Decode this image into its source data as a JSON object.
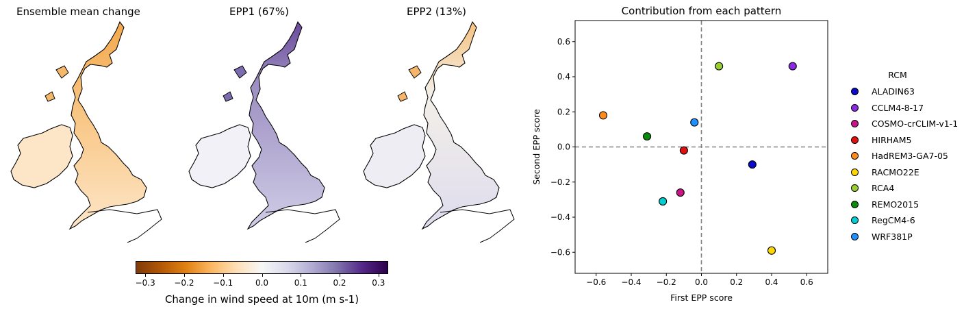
{
  "maps": {
    "titles": [
      "Ensemble mean change",
      "EPP1 (67%)",
      "EPP2 (13%)"
    ]
  },
  "colorbar": {
    "label": "Change in wind speed at 10m (m s-1)",
    "ticks": [
      "−0.3",
      "−0.2",
      "−0.1",
      "0.0",
      "0.1",
      "0.2",
      "0.3"
    ],
    "tick_values": [
      -0.3,
      -0.2,
      -0.1,
      0.0,
      0.1,
      0.2,
      0.3
    ],
    "range": [
      -0.325,
      0.325
    ],
    "colormap": "PuOr",
    "colors": [
      "#7f3b08",
      "#b35806",
      "#e08214",
      "#fdb863",
      "#fee0b6",
      "#f7f7f7",
      "#d8daeb",
      "#b2abd2",
      "#8073ac",
      "#542788",
      "#2d004b"
    ]
  },
  "legend": {
    "title": "RCM",
    "items": [
      {
        "label": "ALADIN63",
        "color": "#0a0ac8"
      },
      {
        "label": "CCLM4-8-17",
        "color": "#8a2be2"
      },
      {
        "label": "COSMO-crCLIM-v1-1",
        "color": "#c71585"
      },
      {
        "label": "HIRHAM5",
        "color": "#e01010"
      },
      {
        "label": "HadREM3-GA7-05",
        "color": "#ff8c1a"
      },
      {
        "label": "RACMO22E",
        "color": "#ffd700"
      },
      {
        "label": "RCA4",
        "color": "#9acd32"
      },
      {
        "label": "REMO2015",
        "color": "#0a8a0a"
      },
      {
        "label": "RegCM4-6",
        "color": "#00ced1"
      },
      {
        "label": "WRF381P",
        "color": "#1e90ff"
      }
    ]
  },
  "chart_data": {
    "type": "scatter",
    "title": "Contribution from each pattern",
    "xlabel": "First EPP score",
    "ylabel": "Second EPP score",
    "xlim": [
      -0.72,
      0.72
    ],
    "ylim": [
      -0.72,
      0.72
    ],
    "xticks": [
      -0.6,
      -0.4,
      -0.2,
      0.0,
      0.2,
      0.4,
      0.6
    ],
    "yticks": [
      -0.6,
      -0.4,
      -0.2,
      0.0,
      0.2,
      0.4,
      0.6
    ],
    "xtick_labels": [
      "−0.6",
      "−0.4",
      "−0.2",
      "0.0",
      "0.2",
      "0.4",
      "0.6"
    ],
    "ytick_labels": [
      "−0.6",
      "−0.4",
      "−0.2",
      "0.0",
      "0.2",
      "0.4",
      "0.6"
    ],
    "reference_lines": {
      "x": 0.0,
      "y": 0.0,
      "style": "dashed",
      "color": "#808080"
    },
    "grid": false,
    "legend_position": "right",
    "points": [
      {
        "name": "ALADIN63",
        "x": 0.29,
        "y": -0.1
      },
      {
        "name": "CCLM4-8-17",
        "x": 0.52,
        "y": 0.46
      },
      {
        "name": "COSMO-crCLIM-v1-1",
        "x": -0.12,
        "y": -0.26
      },
      {
        "name": "HIRHAM5",
        "x": -0.1,
        "y": -0.02
      },
      {
        "name": "HadREM3-GA7-05",
        "x": -0.56,
        "y": 0.18
      },
      {
        "name": "RACMO22E",
        "x": 0.4,
        "y": -0.59
      },
      {
        "name": "RCA4",
        "x": 0.1,
        "y": 0.46
      },
      {
        "name": "REMO2015",
        "x": -0.31,
        "y": 0.06
      },
      {
        "name": "RegCM4-6",
        "x": -0.22,
        "y": -0.31
      },
      {
        "name": "WRF381P",
        "x": -0.04,
        "y": 0.14
      }
    ]
  }
}
